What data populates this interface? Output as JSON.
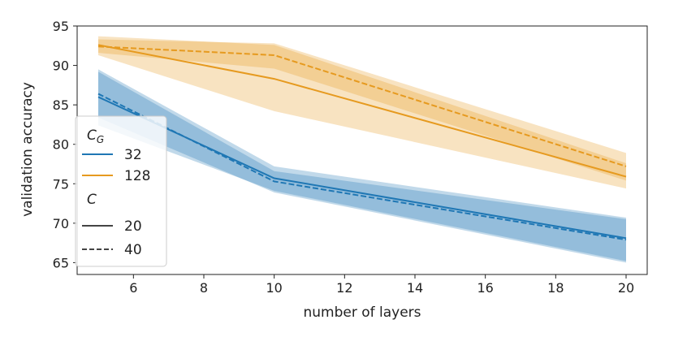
{
  "chart_data": {
    "type": "line",
    "xlabel": "number of layers",
    "ylabel": "validation accuracy",
    "xlim": [
      4.4,
      20.6
    ],
    "ylim": [
      63.5,
      95
    ],
    "xticks": [
      6,
      8,
      10,
      12,
      14,
      16,
      18,
      20
    ],
    "yticks": [
      65,
      70,
      75,
      80,
      85,
      90,
      95
    ],
    "x": [
      5,
      10,
      20
    ],
    "colors": {
      "32": "#1f77b4",
      "128": "#e69a1f"
    },
    "series": [
      {
        "name": "C_G=128, C=20",
        "cg": "128",
        "c": "20",
        "style": "solid",
        "values": [
          92.6,
          88.3,
          75.9
        ],
        "lower": [
          91.3,
          84.2,
          74.4
        ],
        "upper": [
          93.7,
          92.6,
          77.6
        ]
      },
      {
        "name": "C_G=128, C=40",
        "cg": "128",
        "c": "40",
        "style": "dashed",
        "values": [
          92.4,
          91.3,
          77.2
        ],
        "lower": [
          91.6,
          89.6,
          75.4
        ],
        "upper": [
          93.3,
          92.8,
          78.9
        ]
      },
      {
        "name": "C_G=32, C=20",
        "cg": "32",
        "c": "20",
        "style": "solid",
        "values": [
          86.0,
          75.7,
          68.1
        ],
        "lower": [
          82.4,
          74.1,
          65.2
        ],
        "upper": [
          89.5,
          77.2,
          70.7
        ]
      },
      {
        "name": "C_G=32, C=40",
        "cg": "32",
        "c": "40",
        "style": "dashed",
        "values": [
          86.4,
          75.3,
          67.9
        ],
        "lower": [
          83.4,
          73.9,
          65.0
        ],
        "upper": [
          89.2,
          76.6,
          70.5
        ]
      }
    ],
    "legend": {
      "position": "left",
      "title_cg": "C",
      "title_cg_sub": "G",
      "title_c": "C",
      "entries_cg": [
        "32",
        "128"
      ],
      "entries_c": [
        "20",
        "40"
      ]
    }
  }
}
